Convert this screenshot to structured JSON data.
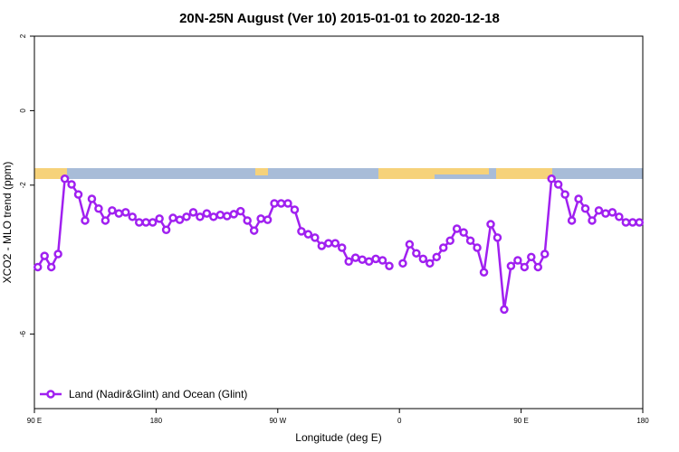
{
  "chart_data": {
    "type": "line",
    "title": "20N-25N August (Ver 10)   2015-01-01 to 2020-12-18",
    "xlabel": "Longitude (deg E)",
    "ylabel": "XCO2 - MLO trend (ppm)",
    "xlim": [
      90,
      540
    ],
    "xticks": [
      {
        "value": 90,
        "label": "90 E"
      },
      180,
      {
        "value": 270,
        "label": "90 W"
      },
      {
        "value": 360,
        "label": "0"
      },
      {
        "value": 450,
        "label": "90 E"
      },
      {
        "value": 540,
        "label": "180"
      }
    ],
    "ylim": [
      -8,
      2
    ],
    "yticks": [
      2,
      0,
      -2,
      -6
    ],
    "legend": "bottomleft",
    "x": [
      92.5,
      97.5,
      102.5,
      107.5,
      112.5,
      117.5,
      122.5,
      127.5,
      132.5,
      137.5,
      142.5,
      147.5,
      152.5,
      157.5,
      162.5,
      167.5,
      172.5,
      177.5,
      182.5,
      187.5,
      192.5,
      197.5,
      202.5,
      207.5,
      212.5,
      217.5,
      222.5,
      227.5,
      232.5,
      237.5,
      242.5,
      247.5,
      252.5,
      257.5,
      262.5,
      267.5,
      272.5,
      277.5,
      282.5,
      287.5,
      292.5,
      297.5,
      302.5,
      307.5,
      312.5,
      317.5,
      322.5,
      327.5,
      332.5,
      337.5,
      342.5,
      347.5,
      352.5,
      357.5,
      362.5,
      367.5,
      372.5,
      377.5,
      382.5,
      387.5,
      392.5,
      397.5,
      402.5,
      407.5,
      412.5,
      417.5,
      422.5,
      427.5,
      432.5,
      437.5,
      442.5,
      447.5,
      452.5,
      457.5,
      462.5,
      467.5,
      472.5,
      477.5,
      482.5,
      487.5,
      492.5,
      497.5,
      502.5,
      507.5,
      512.5,
      517.5,
      522.5,
      527.5,
      532.5,
      537.5
    ],
    "series": [
      {
        "name": "Land (Nadir&Glint) and Ocean (Glint)",
        "color": "#a020f0",
        "values": [
          -4.2,
          -3.9,
          -4.2,
          -3.85,
          -1.83,
          -1.98,
          -2.25,
          -2.95,
          -2.37,
          -2.63,
          -2.95,
          -2.68,
          -2.76,
          -2.73,
          -2.85,
          -3.0,
          -3.0,
          -3.0,
          -2.9,
          -3.2,
          -2.88,
          -2.93,
          -2.85,
          -2.73,
          -2.85,
          -2.76,
          -2.85,
          -2.8,
          -2.83,
          -2.78,
          -2.7,
          -2.95,
          -3.22,
          -2.9,
          -2.93,
          -2.49,
          -2.49,
          -2.49,
          -2.66,
          -3.24,
          -3.32,
          -3.41,
          -3.63,
          -3.56,
          -3.56,
          -3.68,
          -4.05,
          -3.95,
          -4.0,
          -4.05,
          -3.98,
          -4.02,
          -4.17,
          null,
          -4.1,
          -3.59,
          -3.83,
          -3.98,
          -4.1,
          -3.93,
          -3.68,
          -3.49,
          -3.17,
          -3.27,
          -3.49,
          -3.68,
          -4.34,
          -3.05,
          -3.41,
          -5.34,
          -4.17,
          -4.02,
          -4.2,
          -3.93,
          -4.2,
          -3.85,
          -1.83,
          -1.98,
          -2.25,
          -2.95,
          -2.37,
          -2.63,
          -2.95,
          -2.68,
          -2.76,
          -2.73,
          -2.85,
          -3.0,
          -3.0,
          -3.0
        ]
      }
    ]
  }
}
